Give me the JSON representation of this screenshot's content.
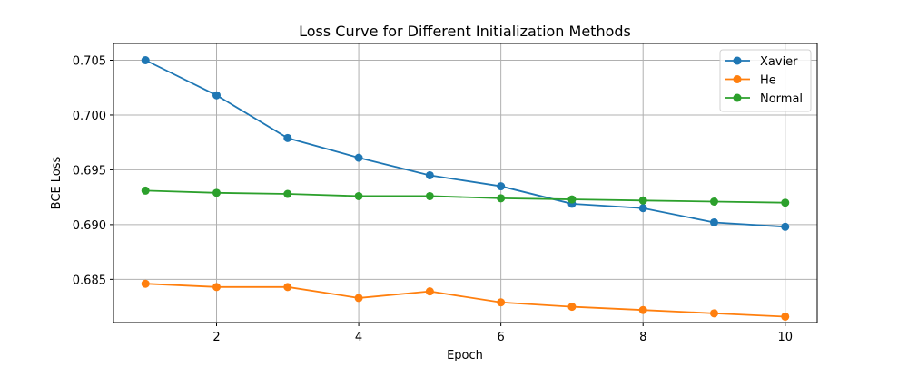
{
  "chart_data": {
    "type": "line",
    "title": "Loss Curve for Different Initialization Methods",
    "xlabel": "Epoch",
    "ylabel": "BCE Loss",
    "x": [
      1,
      2,
      3,
      4,
      5,
      6,
      7,
      8,
      9,
      10
    ],
    "xlim": [
      0.55,
      10.45
    ],
    "ylim": [
      0.68106,
      0.70653
    ],
    "xticks": [
      2,
      4,
      6,
      8,
      10
    ],
    "xtick_labels": [
      "2",
      "4",
      "6",
      "8",
      "10"
    ],
    "yticks": [
      0.685,
      0.69,
      0.695,
      0.7,
      0.705
    ],
    "ytick_labels": [
      "0.685",
      "0.690",
      "0.695",
      "0.700",
      "0.705"
    ],
    "grid": true,
    "legend_position": "top-right",
    "series": [
      {
        "name": "Xavier",
        "color": "#1f77b4",
        "values": [
          0.705,
          0.7018,
          0.6979,
          0.6961,
          0.6945,
          0.6935,
          0.6919,
          0.6915,
          0.6902,
          0.6898
        ]
      },
      {
        "name": "He",
        "color": "#ff7f0e",
        "values": [
          0.6846,
          0.6843,
          0.6843,
          0.6833,
          0.6839,
          0.6829,
          0.6825,
          0.6822,
          0.6819,
          0.6816
        ]
      },
      {
        "name": "Normal",
        "color": "#2ca02c",
        "values": [
          0.6931,
          0.6929,
          0.6928,
          0.6926,
          0.6926,
          0.6924,
          0.6923,
          0.6922,
          0.6921,
          0.692
        ]
      }
    ]
  }
}
